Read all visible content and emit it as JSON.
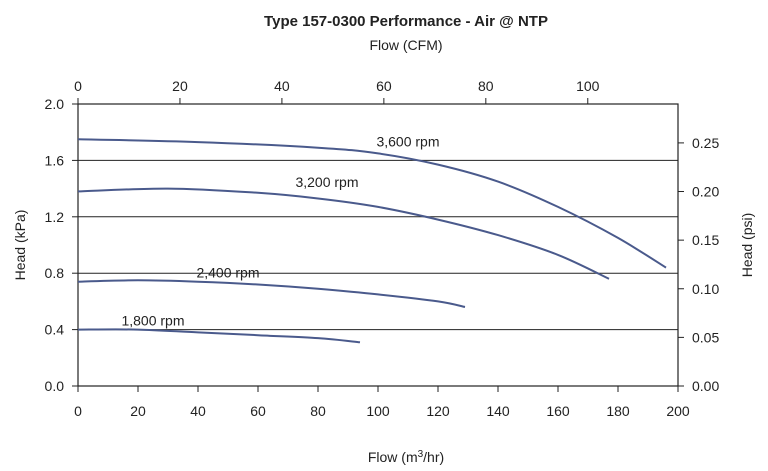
{
  "chart_data": {
    "type": "line",
    "title": "Type 157-0300 Performance - Air @ NTP",
    "x_top_label": "Flow (CFM)",
    "x_label_main": "Flow (m",
    "x_label_sup": "3",
    "x_label_end": "/hr)",
    "y_left_label": "Head (kPa)",
    "y_right_label": "Head (psi)",
    "x_range": [
      0,
      200
    ],
    "y_range": [
      0,
      2.0
    ],
    "x_ticks": [
      "0",
      "20",
      "40",
      "60",
      "80",
      "100",
      "120",
      "140",
      "160",
      "180",
      "200"
    ],
    "y_ticks": [
      "0.0",
      "0.4",
      "0.8",
      "1.2",
      "1.6",
      "2.0"
    ],
    "x_top_range": [
      0,
      117.7
    ],
    "x_top_ticks": [
      "0",
      "20",
      "40",
      "60",
      "80",
      "100"
    ],
    "y_right_range": [
      0,
      0.29
    ],
    "y_right_ticks": [
      "0.00",
      "0.05",
      "0.10",
      "0.15",
      "0.20",
      "0.25"
    ],
    "grid": {
      "horizontal_at": [
        0.4,
        0.8,
        1.2,
        1.6
      ]
    },
    "series": [
      {
        "name": "3,600 rpm",
        "x": [
          0,
          40,
          80,
          100,
          120,
          140,
          160,
          180,
          196
        ],
        "y": [
          1.75,
          1.73,
          1.69,
          1.65,
          1.57,
          1.45,
          1.27,
          1.05,
          0.84
        ]
      },
      {
        "name": "3,200 rpm",
        "x": [
          0,
          30,
          60,
          80,
          100,
          120,
          140,
          160,
          177
        ],
        "y": [
          1.38,
          1.4,
          1.37,
          1.33,
          1.27,
          1.18,
          1.07,
          0.93,
          0.76
        ]
      },
      {
        "name": "2,400 rpm",
        "x": [
          0,
          20,
          40,
          60,
          80,
          100,
          120,
          129
        ],
        "y": [
          0.74,
          0.75,
          0.74,
          0.72,
          0.69,
          0.65,
          0.6,
          0.56
        ]
      },
      {
        "name": "1,800 rpm",
        "x": [
          0,
          20,
          40,
          60,
          80,
          94
        ],
        "y": [
          0.4,
          0.4,
          0.38,
          0.36,
          0.34,
          0.31
        ]
      }
    ],
    "line_color": "#4a5a8c"
  }
}
